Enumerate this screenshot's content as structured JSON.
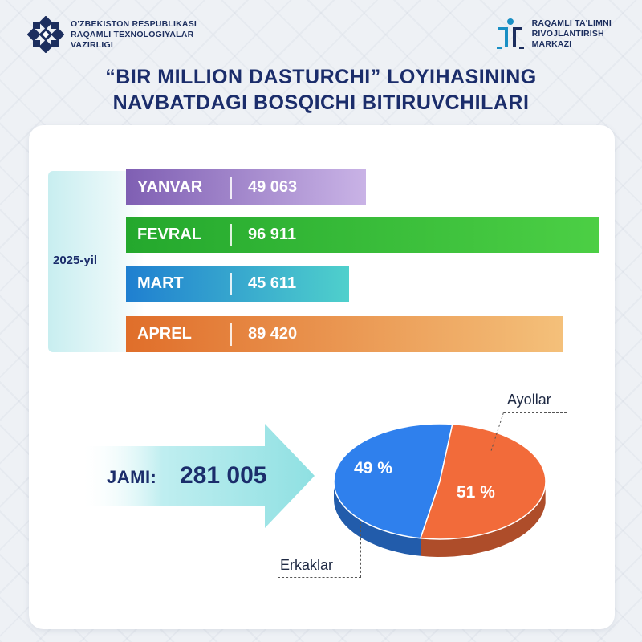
{
  "header": {
    "left_logo": {
      "icon": "ministry-star-emblem",
      "lines": [
        "O'ZBEKISTON RESPUBLIKASI",
        "RAQAMLI TEXNOLOGIYALAR",
        "VAZIRLIGI"
      ]
    },
    "right_logo": {
      "icon": "digital-education-center-emblem",
      "lines": [
        "RAQAMLI TA'LIMNI",
        "RIVOJLANTIRISH",
        "MARKAZI"
      ]
    },
    "title_line1": "“BIR MILLION DASTURCHI” LOYIHASINING",
    "title_line2": "NAVBATDAGI BOSQICHI BITIRUVCHILARI"
  },
  "year_label": "2025-yil",
  "total": {
    "label": "JAMI:",
    "value": "281 005"
  },
  "chart_data": [
    {
      "type": "bar",
      "orientation": "horizontal",
      "categories": [
        "YANVAR",
        "FEVRAL",
        "MART",
        "APREL"
      ],
      "values": [
        49063,
        96911,
        45611,
        89420
      ],
      "value_labels": [
        "49 063",
        "96 911",
        "45 611",
        "89 420"
      ],
      "colors": [
        [
          "#7f5fb3",
          "#c9b3e6"
        ],
        [
          "#24a82d",
          "#4ccf45"
        ],
        [
          "#1f7fd0",
          "#4fd0cc"
        ],
        [
          "#e06e2a",
          "#f4c07a"
        ]
      ]
    },
    {
      "type": "pie",
      "labels": [
        "Erkaklar",
        "Ayollar"
      ],
      "values": [
        49,
        51
      ],
      "value_labels": [
        "49 %",
        "51 %"
      ],
      "colors": [
        "#2f80ed",
        "#f26b3a"
      ]
    }
  ]
}
